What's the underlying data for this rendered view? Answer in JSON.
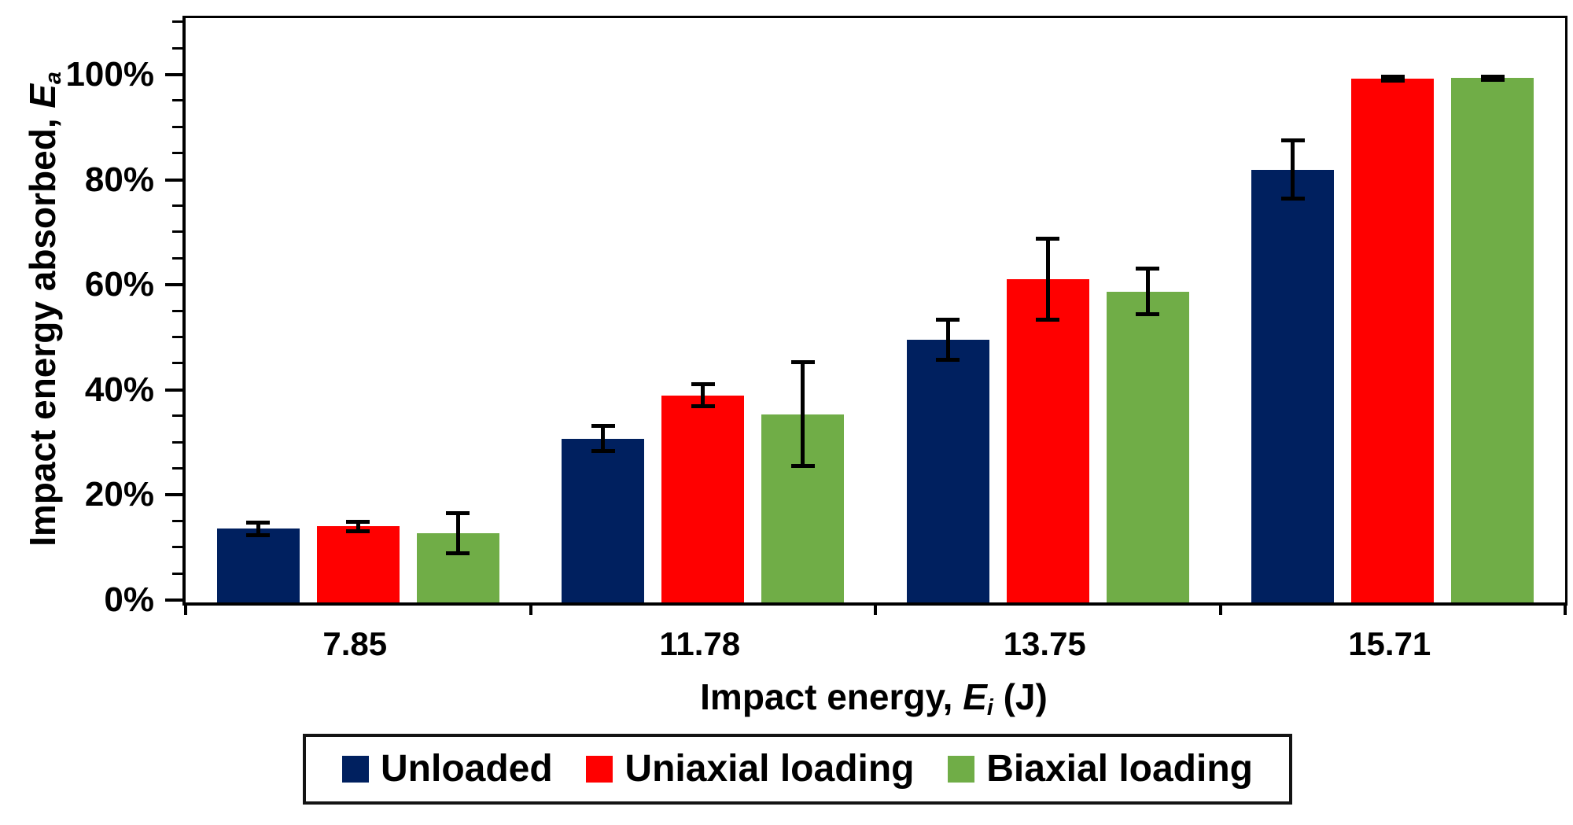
{
  "chart_data": {
    "type": "bar",
    "title": "",
    "categories": [
      "7.85",
      "11.78",
      "13.75",
      "15.71"
    ],
    "series": [
      {
        "name": "Unloaded",
        "color": "#00205F",
        "values": [
          14.0,
          31.2,
          50.0,
          82.4
        ],
        "errors": [
          1.2,
          2.4,
          3.8,
          5.6
        ]
      },
      {
        "name": "Uniaxial loading",
        "color": "#FF0000",
        "values": [
          14.5,
          39.4,
          61.5,
          99.7
        ],
        "errors": [
          0.9,
          2.1,
          7.7,
          0.4
        ]
      },
      {
        "name": "Biaxial loading",
        "color": "#70AD47",
        "values": [
          13.2,
          35.8,
          59.2,
          99.8
        ],
        "errors": [
          3.8,
          9.9,
          4.4,
          0.3
        ]
      }
    ],
    "xlabel": {
      "prefix": "Impact energy, ",
      "symbol": "E",
      "subscript": "i",
      "suffix": " (J)"
    },
    "ylabel": {
      "prefix": "Impact energy absorbed, ",
      "symbol": "E",
      "subscript": "a",
      "suffix": ""
    },
    "y_axis": {
      "min": 0,
      "max": 110,
      "major_step": 20,
      "minor_step": 5,
      "tick_labels": [
        "0%",
        "20%",
        "40%",
        "60%",
        "80%",
        "100%"
      ],
      "labeled_max": 100
    },
    "legend_position": "bottom",
    "grid": false,
    "error_bars": true,
    "axis_color": "#000000"
  }
}
